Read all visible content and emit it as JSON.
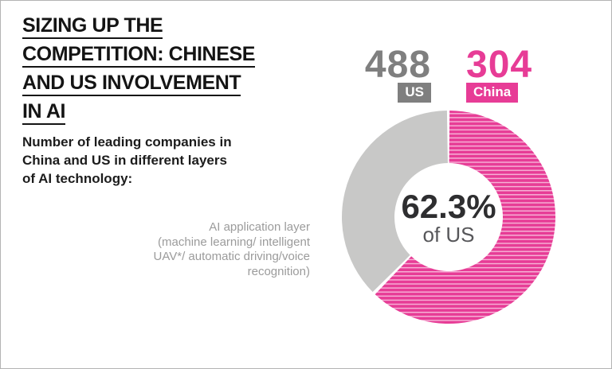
{
  "header": {
    "title_lines": [
      "SIZING UP THE",
      "COMPETITION: CHINESE",
      "AND US INVOLVEMENT",
      "IN AI"
    ],
    "subtitle": "Number of leading companies in\nChina and US in different layers\nof AI technology:"
  },
  "stats": {
    "us": {
      "value": "488",
      "label": "US"
    },
    "china": {
      "value": "304",
      "label": "China"
    }
  },
  "donut": {
    "center_value": "62.3%",
    "center_caption": "of US"
  },
  "annotation": {
    "text": "AI application layer\n(machine learning/ intelligent\nUAV*/ automatic driving/voice\nrecognition)"
  },
  "palette": {
    "china_pink": "#e73c96",
    "china_stripe": "#f6b0d5",
    "us_arc_gray": "#c8c8c7",
    "us_dark_gray": "#7f7f7f",
    "title_black": "#141414",
    "annotation_gray": "#9b9b9b",
    "pct_dark": "#2e2e30",
    "caption_gray": "#57575a",
    "frame_border": "#b3b3b3"
  },
  "chart_data": {
    "type": "pie",
    "subtype": "donut",
    "title": "SIZING UP THE COMPETITION: CHINESE AND US INVOLVEMENT IN AI",
    "subtitle": "Number of leading companies in China and US in different layers of AI technology:",
    "series": [
      {
        "name": "US",
        "value": 488,
        "color": "#7f7f7f",
        "arc_color": "#c8c8c7",
        "arc_style": "solid"
      },
      {
        "name": "China",
        "value": 304,
        "color": "#e73c96",
        "arc_color": "#e73c96",
        "arc_style": "horizontal-stripes"
      }
    ],
    "donut_shows": "China value as share of US value",
    "china_share_of_us_pct": 62.3,
    "center_label": "62.3%",
    "center_caption": "of US",
    "start_angle_deg": 0,
    "direction": "clockwise",
    "legend_position": "top",
    "annotation": "AI application layer (machine learning/ intelligent UAV*/ automatic driving/voice recognition)"
  }
}
